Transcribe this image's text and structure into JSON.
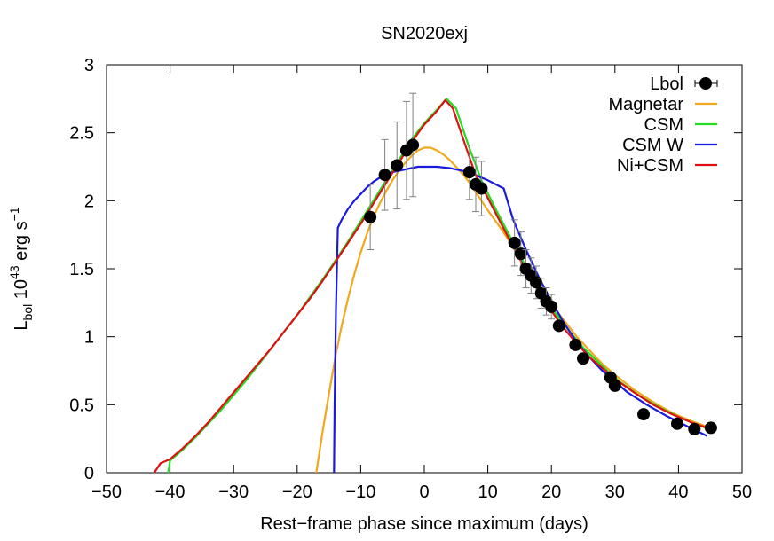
{
  "chart_data": {
    "type": "scatter",
    "title": "SN2020exj",
    "xlabel": "Rest−frame phase since maximum (days)",
    "ylabel": {
      "base": "L",
      "sub": "bol",
      "mid": " 10",
      "sup": "43",
      "tail": " erg s",
      "sup2": "−1"
    },
    "xlim": [
      -50,
      50
    ],
    "ylim": [
      0,
      3
    ],
    "x_ticks": [
      -50,
      -40,
      -30,
      -20,
      -10,
      0,
      10,
      20,
      30,
      40,
      50
    ],
    "x_tick_labels": [
      "−50",
      "−40",
      "−30",
      "−20",
      "−10",
      "0",
      "10",
      "20",
      "30",
      "40",
      "50"
    ],
    "y_ticks": [
      0,
      0.5,
      1,
      1.5,
      2,
      2.5,
      3
    ],
    "y_tick_labels": [
      "0",
      "0.5",
      "1",
      "1.5",
      "2",
      "2.5",
      "3"
    ],
    "legend_position": "top-right",
    "points": {
      "name": "Lbol",
      "color": "#000000",
      "x": [
        -8.5,
        -6.2,
        -4.3,
        -2.8,
        -1.8,
        7.1,
        8.1,
        9.0,
        14.2,
        15.2,
        16.0,
        16.8,
        17.6,
        18.4,
        19.2,
        20.0,
        21.2,
        23.8,
        25.0,
        29.3,
        30.0,
        34.5,
        39.8,
        42.5,
        45.1
      ],
      "y": [
        1.88,
        2.19,
        2.26,
        2.37,
        2.41,
        2.21,
        2.12,
        2.09,
        1.69,
        1.61,
        1.5,
        1.45,
        1.4,
        1.32,
        1.26,
        1.22,
        1.08,
        0.94,
        0.84,
        0.7,
        0.64,
        0.43,
        0.36,
        0.32,
        0.33
      ],
      "err": [
        0.24,
        0.26,
        0.32,
        0.36,
        0.38,
        0.2,
        0.2,
        0.2,
        0.17,
        0.16,
        0.14,
        0.13,
        0.12,
        0.11,
        0.1,
        0.09,
        0.03,
        0.02,
        0.02,
        0.02,
        0.02,
        0.01,
        0.01,
        0.01,
        0.01
      ]
    },
    "series": [
      {
        "name": "Magnetar",
        "color": "#f0a81c",
        "x": [
          -17.0,
          -16.0,
          -15.0,
          -14.0,
          -13.0,
          -12.0,
          -11.0,
          -10.0,
          -9.0,
          -8.0,
          -7.0,
          -6.0,
          -5.0,
          -4.0,
          -3.0,
          -2.0,
          -1.0,
          0.0,
          1.0,
          2.0,
          3.0,
          4.0,
          5.0,
          6.0,
          7.0,
          8.0,
          9.0,
          10.0,
          12.0,
          14.0,
          16.0,
          18.0,
          20.0,
          22.0,
          24.0,
          26.0,
          28.0,
          30.0,
          33.0,
          36.0,
          39.0,
          42.0,
          45.0
        ],
        "y": [
          0.0,
          0.3,
          0.58,
          0.85,
          1.08,
          1.28,
          1.46,
          1.62,
          1.76,
          1.88,
          1.98,
          2.07,
          2.15,
          2.22,
          2.28,
          2.33,
          2.37,
          2.39,
          2.39,
          2.37,
          2.34,
          2.3,
          2.25,
          2.2,
          2.14,
          2.07,
          2.0,
          1.93,
          1.8,
          1.66,
          1.52,
          1.38,
          1.24,
          1.12,
          1.0,
          0.9,
          0.8,
          0.72,
          0.61,
          0.52,
          0.44,
          0.38,
          0.33
        ]
      },
      {
        "name": "CSM",
        "color": "#22dd22",
        "x": [
          -40.3,
          -40.0,
          -38.0,
          -36.0,
          -34.0,
          -32.0,
          -30.0,
          -28.0,
          -26.0,
          -24.0,
          -22.0,
          -20.0,
          -18.0,
          -16.0,
          -14.0,
          -12.0,
          -10.0,
          -8.0,
          -6.0,
          -4.0,
          -2.0,
          0.0,
          2.0,
          3.5,
          5.0,
          7.0,
          9.0,
          11.0,
          13.0,
          15.0,
          17.0,
          19.0,
          21.0,
          23.0,
          25.0,
          27.0,
          29.0,
          31.0,
          34.0,
          37.0,
          40.0,
          43.0,
          45.0
        ],
        "y": [
          0.0,
          0.09,
          0.17,
          0.26,
          0.36,
          0.46,
          0.57,
          0.68,
          0.8,
          0.92,
          1.04,
          1.16,
          1.29,
          1.42,
          1.56,
          1.7,
          1.85,
          2.0,
          2.15,
          2.3,
          2.45,
          2.57,
          2.67,
          2.75,
          2.68,
          2.4,
          2.15,
          1.96,
          1.78,
          1.6,
          1.43,
          1.28,
          1.15,
          1.03,
          0.92,
          0.83,
          0.74,
          0.66,
          0.56,
          0.48,
          0.41,
          0.35,
          0.32
        ]
      },
      {
        "name": "CSM W",
        "color": "#1a1adc",
        "x": [
          -14.2,
          -14.1,
          -13.9,
          -13.6,
          -13.0,
          -12.0,
          -11.0,
          -10.0,
          -9.0,
          -8.0,
          -7.0,
          -6.0,
          -5.0,
          -4.0,
          -3.0,
          -2.0,
          -1.0,
          0.0,
          2.0,
          4.0,
          6.0,
          8.0,
          10.0,
          12.5,
          14.0,
          16.0,
          18.0,
          20.0,
          22.0,
          24.0,
          26.0,
          28.0,
          30.0,
          32.0,
          35.0,
          38.0,
          41.0,
          44.5
        ],
        "y": [
          0.0,
          0.5,
          1.2,
          1.8,
          1.86,
          1.94,
          2.0,
          2.05,
          2.1,
          2.14,
          2.17,
          2.19,
          2.21,
          2.22,
          2.23,
          2.24,
          2.25,
          2.25,
          2.25,
          2.24,
          2.22,
          2.19,
          2.15,
          2.09,
          1.86,
          1.64,
          1.44,
          1.26,
          1.1,
          0.96,
          0.85,
          0.75,
          0.67,
          0.59,
          0.5,
          0.42,
          0.35,
          0.27
        ]
      },
      {
        "name": "Ni+CSM",
        "color": "#dd1111",
        "x": [
          -42.5,
          -41.5,
          -40.0,
          -38.0,
          -36.0,
          -34.0,
          -32.0,
          -30.0,
          -28.0,
          -26.0,
          -24.0,
          -22.0,
          -20.0,
          -18.0,
          -16.0,
          -14.0,
          -12.0,
          -10.0,
          -8.0,
          -6.0,
          -4.0,
          -2.0,
          0.0,
          2.0,
          3.3,
          4.5,
          6.0,
          8.0,
          10.0,
          12.0,
          14.0,
          16.0,
          18.0,
          20.0,
          22.0,
          24.0,
          26.0,
          28.0,
          30.0,
          33.0,
          36.0,
          39.0,
          42.0,
          44.5
        ],
        "y": [
          0.0,
          0.07,
          0.1,
          0.18,
          0.27,
          0.37,
          0.48,
          0.59,
          0.7,
          0.81,
          0.92,
          1.04,
          1.16,
          1.28,
          1.41,
          1.55,
          1.69,
          1.83,
          1.98,
          2.13,
          2.28,
          2.43,
          2.56,
          2.66,
          2.74,
          2.68,
          2.47,
          2.2,
          2.02,
          1.84,
          1.66,
          1.49,
          1.33,
          1.19,
          1.06,
          0.95,
          0.85,
          0.77,
          0.69,
          0.59,
          0.5,
          0.43,
          0.37,
          0.33
        ]
      }
    ]
  }
}
